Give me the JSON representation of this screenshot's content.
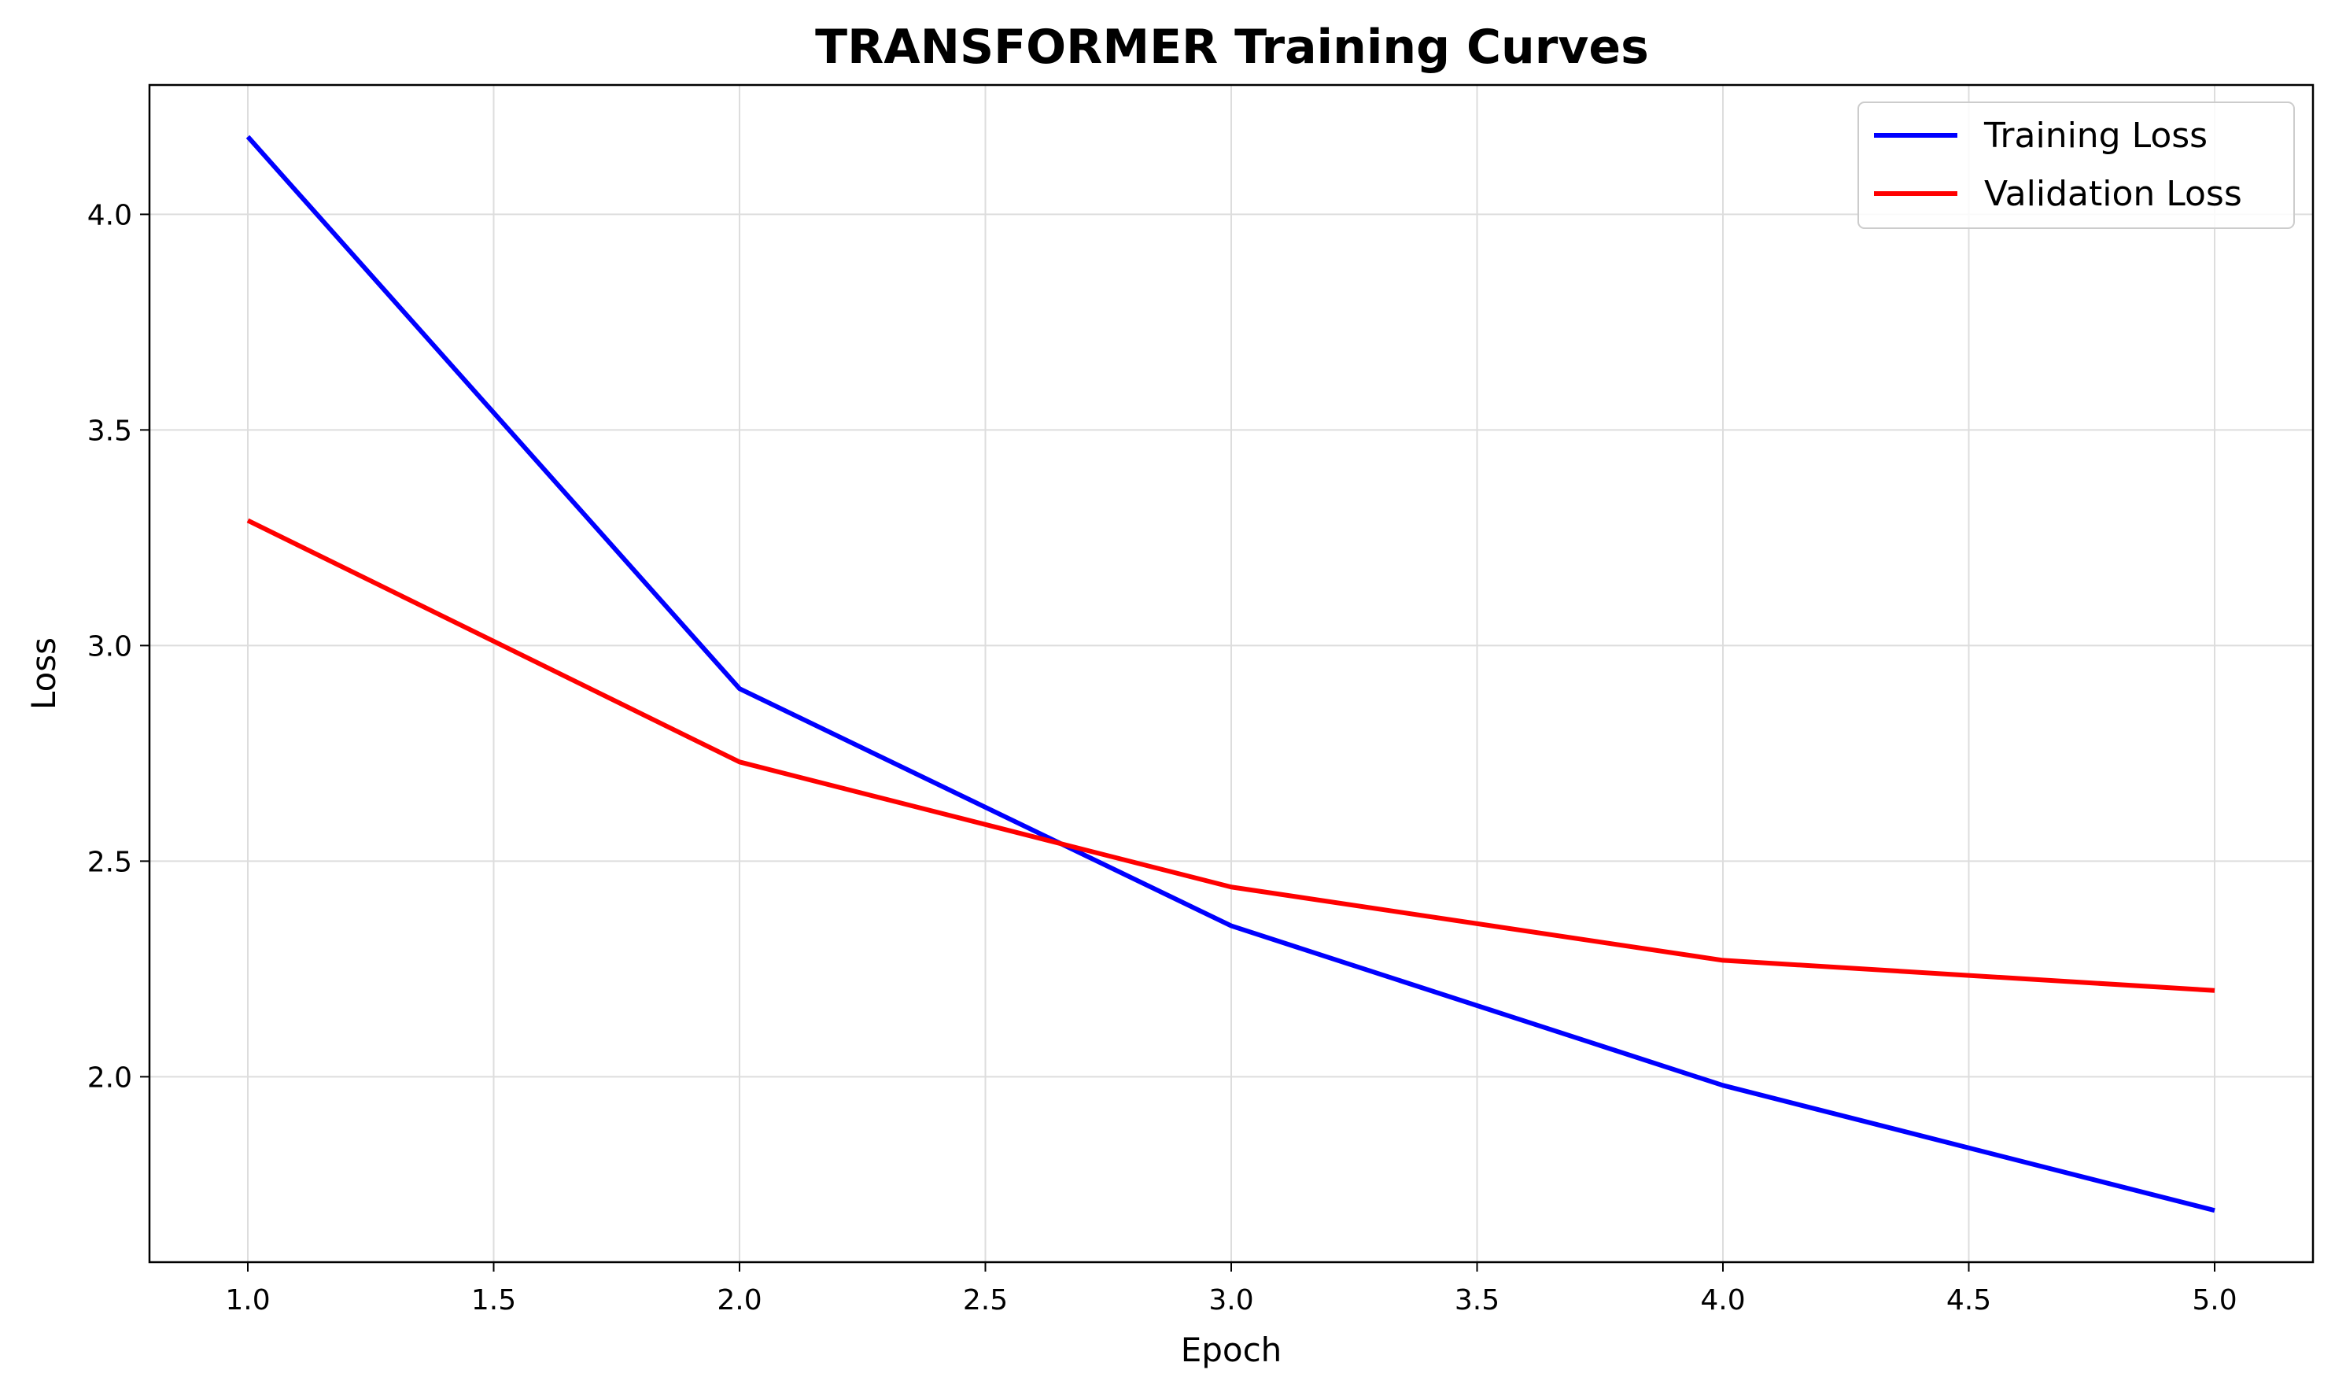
{
  "chart_data": {
    "type": "line",
    "title": "TRANSFORMER Training Curves",
    "xlabel": "Epoch",
    "ylabel": "Loss",
    "x": [
      1,
      2,
      3,
      4,
      5
    ],
    "series": [
      {
        "name": "Training Loss",
        "color": "#0000ff",
        "values": [
          4.18,
          2.9,
          2.35,
          1.98,
          1.69
        ]
      },
      {
        "name": "Validation Loss",
        "color": "#ff0000",
        "values": [
          3.29,
          2.73,
          2.44,
          2.27,
          2.2
        ]
      }
    ],
    "xlim": [
      0.8,
      5.2
    ],
    "ylim": [
      1.57,
      4.3
    ],
    "xticks": [
      "1.0",
      "1.5",
      "2.0",
      "2.5",
      "3.0",
      "3.5",
      "4.0",
      "4.5",
      "5.0"
    ],
    "yticks": [
      "2.0",
      "2.5",
      "3.0",
      "3.5",
      "4.0"
    ],
    "grid": true,
    "legend_position": "top-right"
  }
}
